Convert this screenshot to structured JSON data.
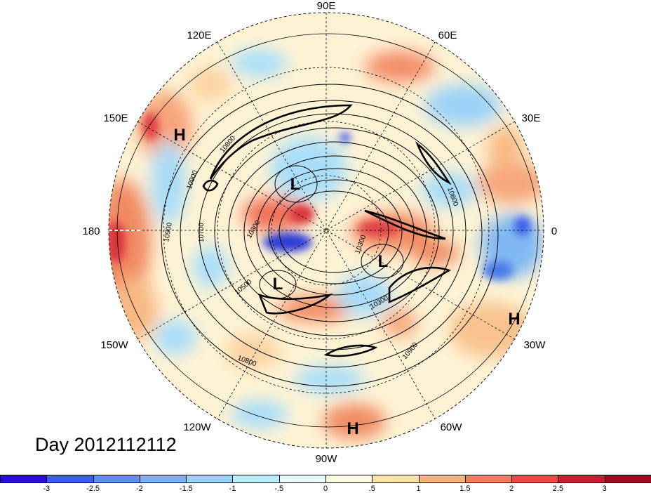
{
  "title": "Day 2012112112",
  "longitude_labels": {
    "top": "90E",
    "upper_left": "120E",
    "upper_right": "60E",
    "left_upper": "150E",
    "right_upper": "30E",
    "left": "180",
    "right": "0",
    "left_lower": "150W",
    "right_lower": "30W",
    "lower_left": "120W",
    "lower_right": "60W",
    "bottom": "90W"
  },
  "pressure_systems": [
    {
      "label": "H"
    },
    {
      "label": "L"
    },
    {
      "label": "L"
    },
    {
      "label": "L"
    },
    {
      "label": "H"
    },
    {
      "label": "H"
    }
  ],
  "contour_labels": [
    "10800",
    "10900",
    "10700",
    "10900",
    "10300",
    "10500",
    "10800",
    "10800",
    "10900",
    "10300",
    "10300"
  ],
  "colorbar": {
    "ticks": [
      "-3",
      "-2.5",
      "-2",
      "-1.5",
      "-1",
      "-.5",
      "0",
      ".5",
      "1",
      "1.5",
      "2",
      "2.5",
      "3"
    ],
    "colors": [
      "#2a0ed8",
      "#3d5fe8",
      "#5c8ff0",
      "#77b0f5",
      "#97d2f8",
      "#b9edfb",
      "#e8f9fe",
      "#fffbdc",
      "#fde3a4",
      "#f7b277",
      "#f27d5a",
      "#e94a46",
      "#c41f30",
      "#9a0c1e"
    ]
  }
}
